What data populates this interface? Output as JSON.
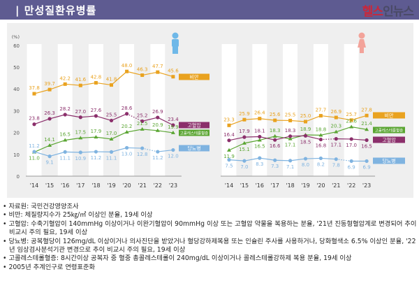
{
  "header": {
    "title": "| 만성질환유병률",
    "logo": "헬스인뉴스",
    "logo_part1": "헬스",
    "logo_part2": "인뉴스"
  },
  "colors": {
    "header": "#5e5b91",
    "obesity": "#e9a21f",
    "hypertension": "#8b2f6b",
    "cholesterol": "#5aa532",
    "diabetes": "#7fb3e0",
    "male_icon": "#6fb8e8",
    "female_icon": "#f3a39a"
  },
  "chart_data": [
    {
      "type": "line",
      "panel": "male",
      "icon": "male-figure-icon",
      "unit": "(%)",
      "yticks": [
        0,
        10,
        20,
        30,
        40,
        50,
        60
      ],
      "ylim": [
        0,
        60
      ],
      "categories": [
        "'14",
        "'15",
        "'16",
        "'17",
        "'18",
        "'19",
        "'20",
        "'21",
        "'22",
        "'23"
      ],
      "series": [
        {
          "name": "비만",
          "key": "obesity",
          "values": [
            37.8,
            39.7,
            42.2,
            41.6,
            42.8,
            41.8,
            48.0,
            46.3,
            47.7,
            45.6
          ]
        },
        {
          "name": "고혈압",
          "key": "hypertension",
          "values": [
            23.8,
            26.3,
            28.2,
            27.0,
            27.6,
            25.5,
            28.6,
            25.2,
            26.9,
            23.4
          ],
          "dashed_segment": "'20-'21"
        },
        {
          "name": "고콜레스테롤혈증",
          "key": "cholesterol",
          "values": [
            11.0,
            14.1,
            16.5,
            17.5,
            17.9,
            17.0,
            20.2,
            21.5,
            20.9,
            19.9
          ]
        },
        {
          "name": "당뇨병",
          "key": "diabetes",
          "values": [
            11.2,
            9.1,
            11.1,
            10.9,
            11.2,
            11.1,
            13.0,
            12.8,
            11.2,
            12.0
          ],
          "dashed_segment": "'21-'22"
        }
      ]
    },
    {
      "type": "line",
      "panel": "female",
      "icon": "female-figure-icon",
      "ylim": [
        0,
        60
      ],
      "categories": [
        "'14",
        "'15",
        "'16",
        "'17",
        "'18",
        "'19",
        "'20",
        "'21",
        "'22",
        "'23"
      ],
      "series": [
        {
          "name": "비만",
          "key": "obesity",
          "values": [
            23.3,
            25.9,
            26.4,
            25.6,
            25.5,
            25.0,
            27.7,
            26.9,
            25.7,
            27.8
          ]
        },
        {
          "name": "고콜레스테롤혈증",
          "key": "cholesterol",
          "values": [
            11.9,
            15.1,
            16.5,
            18.3,
            17.1,
            18.9,
            18.8,
            20.3,
            22.6,
            21.4
          ]
        },
        {
          "name": "고혈압",
          "key": "hypertension",
          "values": [
            16.4,
            17.9,
            18.1,
            16.6,
            18.3,
            18.5,
            16.8,
            17.1,
            17.0,
            16.5
          ],
          "dashed_segment": "'20-'21"
        },
        {
          "name": "당뇨병",
          "key": "diabetes",
          "values": [
            7.5,
            7.0,
            8.3,
            7.3,
            7.1,
            8.0,
            8.2,
            7.8,
            6.9,
            6.9
          ],
          "dashed_segment": "'21-'22"
        }
      ]
    }
  ],
  "notes": [
    "• 자료원: 국민건강영양조사",
    "• 비만: 체질량지수가 25㎏/㎡ 이상인 분율, 19세 이상",
    "• 고혈압: 수축기혈압이 140mmHg 이상이거나 이완기혈압이 90mmHg 이상 또는 고혈압 약물을 복용하는 분율, '21년 진동형혈압계로 변경되어 추이 비교시 주의 필요, 19세 이상",
    "• 당뇨병: 공복혈당이 126mg/dL 이상이거나 의사진단을 받았거나 혈당강하제복용 또는 인슐린 주사를 사용하거나, 당화혈색소 6.5% 이상인 분율, '22년 임상검사분석기관 변경으로 추이 비교시 주의 필요, 19세 이상",
    "• 고콜레스테롤혈증: 8시간이상 공복자 중 혈중 총콜레스테롤이 240mg/dL 이상이거나 콜레스테롤강하제 복용 분율, 19세 이상",
    "• 2005년 추계인구로 연령표준화"
  ]
}
